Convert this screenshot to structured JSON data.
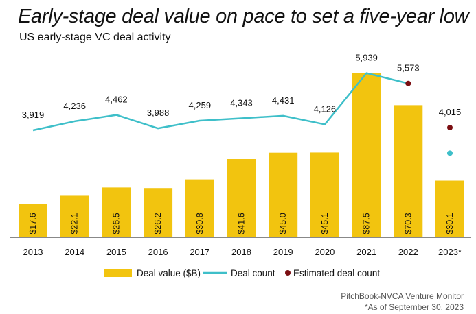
{
  "title": "Early-stage deal value on pace to set a five-year low",
  "subtitle": "US early-stage VC deal activity",
  "source_line1": "PitchBook-NVCA Venture Monitor",
  "source_line2": "*As of September 30, 2023",
  "colors": {
    "bar": "#F2C40F",
    "line": "#3EBFC9",
    "estimate": "#7B0E12",
    "axis": "#111111"
  },
  "chart_data": {
    "type": "bar",
    "categories": [
      "2013",
      "2014",
      "2015",
      "2016",
      "2017",
      "2018",
      "2019",
      "2020",
      "2021",
      "2022",
      "2023*"
    ],
    "series": [
      {
        "name": "Deal value ($B)",
        "type": "bar",
        "values": [
          17.6,
          22.1,
          26.5,
          26.2,
          30.8,
          41.6,
          45.0,
          45.1,
          87.5,
          70.3,
          30.1
        ],
        "labels": [
          "$17.6",
          "$22.1",
          "$26.5",
          "$26.2",
          "$30.8",
          "$41.6",
          "$45.0",
          "$45.1",
          "$87.5",
          "$70.3",
          "$30.1"
        ]
      },
      {
        "name": "Deal count",
        "type": "line",
        "values": [
          3919,
          4236,
          4462,
          3988,
          4259,
          4343,
          4431,
          4126,
          5939,
          5573,
          2990
        ],
        "labels": [
          "3,919",
          "4,236",
          "4,462",
          "3,988",
          "4,259",
          "4,343",
          "4,431",
          "4,126",
          "5,939",
          "5,573",
          ""
        ]
      },
      {
        "name": "Estimated deal count",
        "type": "scatter",
        "points": [
          {
            "category": "2022",
            "value": 5573
          },
          {
            "category": "2023*",
            "value": 4015,
            "label": "4,015"
          }
        ]
      }
    ],
    "legend": [
      "Deal value ($B)",
      "Deal count",
      "Estimated deal count"
    ],
    "legend_position": "bottom",
    "grid": false
  }
}
